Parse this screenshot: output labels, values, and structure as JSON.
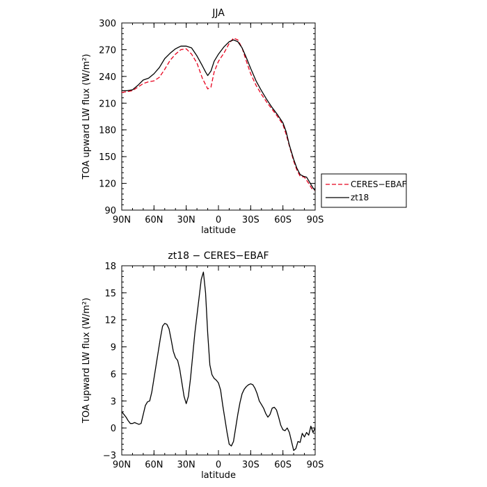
{
  "chart_data": [
    {
      "type": "line",
      "title": "JJA",
      "xlabel": "latitude",
      "ylabel": "TOA upward LW flux (W/m²)",
      "xlim": [
        90,
        -90
      ],
      "ylim": [
        90,
        300
      ],
      "x_ticks": [
        90,
        60,
        30,
        0,
        -30,
        -60,
        -90
      ],
      "x_tick_labels": [
        "90N",
        "60N",
        "30N",
        "0",
        "30S",
        "60S",
        "90S"
      ],
      "y_ticks": [
        90,
        120,
        150,
        180,
        210,
        240,
        270,
        300
      ],
      "y_tick_labels": [
        "90",
        "120",
        "150",
        "180",
        "210",
        "240",
        "270",
        "300"
      ],
      "legend": {
        "placement": "outside-right"
      },
      "series": [
        {
          "name": "CERES−EBAF",
          "color": "#e8001c",
          "dash": "dashed",
          "x": [
            90,
            85,
            80,
            75,
            70,
            65,
            60,
            55,
            50,
            45,
            40,
            35,
            30,
            25,
            20,
            15,
            10,
            7,
            4,
            0,
            -5,
            -10,
            -14,
            -18,
            -22,
            -26,
            -30,
            -35,
            -40,
            -45,
            -50,
            -55,
            -60,
            -63,
            -66,
            -70,
            -73,
            -76,
            -80,
            -84,
            -87,
            -90
          ],
          "y": [
            222,
            223,
            224,
            228,
            232,
            234,
            235,
            239,
            248,
            258,
            265,
            270,
            271,
            265,
            255,
            238,
            226,
            228,
            245,
            257,
            266,
            277,
            283,
            281,
            272,
            257,
            243,
            230,
            220,
            211,
            203,
            195,
            186,
            175,
            162,
            145,
            135,
            128,
            127,
            120,
            114,
            112
          ]
        },
        {
          "name": "zt18",
          "color": "#000000",
          "dash": "solid",
          "x": [
            90,
            85,
            80,
            75,
            70,
            65,
            60,
            55,
            50,
            45,
            40,
            35,
            30,
            25,
            20,
            15,
            12,
            10,
            7,
            4,
            0,
            -5,
            -10,
            -14,
            -18,
            -22,
            -26,
            -30,
            -35,
            -40,
            -45,
            -50,
            -55,
            -60,
            -63,
            -66,
            -70,
            -73,
            -76,
            -79,
            -82,
            -85,
            -88,
            -90
          ],
          "y": [
            224,
            224,
            225,
            230,
            236,
            238,
            243,
            250,
            260,
            266,
            271,
            274,
            274,
            272,
            263,
            252,
            245,
            241,
            246,
            257,
            265,
            273,
            279,
            281,
            279,
            272,
            261,
            249,
            235,
            224,
            214,
            205,
            197,
            188,
            178,
            163,
            147,
            137,
            130,
            128,
            127,
            121,
            115,
            112
          ]
        }
      ]
    },
    {
      "type": "line",
      "title": "zt18 − CERES−EBAF",
      "xlabel": "latitude",
      "ylabel": "TOA upward LW flux (W/m²)",
      "xlim": [
        90,
        -90
      ],
      "ylim": [
        -3,
        18
      ],
      "x_ticks": [
        90,
        60,
        30,
        0,
        -30,
        -60,
        -90
      ],
      "x_tick_labels": [
        "90N",
        "60N",
        "30N",
        "0",
        "30S",
        "60S",
        "90S"
      ],
      "y_ticks": [
        -3,
        0,
        3,
        6,
        9,
        12,
        15,
        18
      ],
      "y_tick_labels": [
        "−3",
        "0",
        "3",
        "6",
        "9",
        "12",
        "15",
        "18"
      ],
      "series": [
        {
          "color": "#000000",
          "dash": "solid",
          "x": [
            90,
            88,
            86,
            84,
            82,
            80,
            78,
            76,
            74,
            72,
            70,
            68,
            66,
            64,
            62,
            60,
            58,
            56,
            54,
            52,
            50,
            48,
            46,
            44,
            42,
            40,
            38,
            36,
            34,
            32,
            30,
            28,
            26,
            24,
            22,
            20,
            18,
            16,
            14,
            12,
            10,
            8,
            6,
            4,
            2,
            0,
            -2,
            -4,
            -6,
            -8,
            -10,
            -12,
            -14,
            -16,
            -18,
            -20,
            -22,
            -24,
            -26,
            -28,
            -30,
            -32,
            -34,
            -36,
            -38,
            -40,
            -42,
            -44,
            -46,
            -48,
            -50,
            -52,
            -54,
            -56,
            -58,
            -60,
            -62,
            -64,
            -66,
            -68,
            -70,
            -72,
            -74,
            -76,
            -78,
            -80,
            -82,
            -84,
            -86,
            -88,
            -90
          ],
          "y": [
            1.8,
            1.5,
            1.2,
            0.8,
            0.5,
            0.5,
            0.6,
            0.5,
            0.4,
            0.5,
            1.5,
            2.5,
            2.9,
            3.0,
            4.0,
            5.5,
            7.0,
            8.5,
            10.0,
            11.3,
            11.6,
            11.5,
            11.0,
            9.8,
            8.5,
            7.8,
            7.5,
            6.5,
            5.0,
            3.5,
            2.7,
            3.5,
            5.5,
            8.0,
            10.5,
            12.5,
            14.5,
            16.5,
            17.3,
            15.0,
            10.5,
            7.0,
            5.9,
            5.5,
            5.3,
            5.0,
            4.2,
            2.5,
            1.0,
            -0.5,
            -1.8,
            -2.0,
            -1.5,
            0.0,
            1.5,
            2.8,
            3.8,
            4.3,
            4.6,
            4.8,
            4.9,
            4.8,
            4.4,
            3.8,
            3.0,
            2.6,
            2.2,
            1.6,
            1.2,
            1.5,
            2.2,
            2.3,
            2.0,
            1.2,
            0.3,
            -0.2,
            -0.3,
            0.0,
            -0.5,
            -1.5,
            -2.5,
            -2.3,
            -1.5,
            -1.6,
            -0.6,
            -1.0,
            -0.5,
            -0.8,
            0.2,
            -0.5,
            0.0
          ]
        }
      ]
    }
  ]
}
